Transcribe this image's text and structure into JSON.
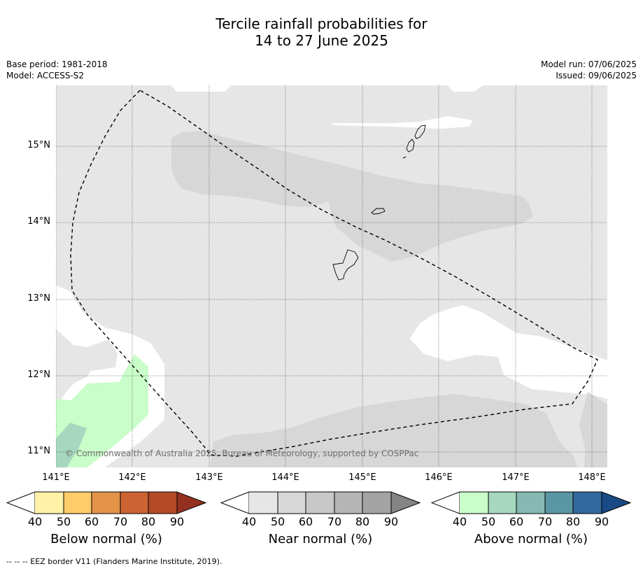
{
  "title_line1": "Tercile rainfall probabilities for",
  "title_line2": "14 to 27 June 2025",
  "base_period": "Base period: 1981-2018",
  "model": "Model: ACCESS-S2",
  "model_run": "Model run: 07/06/2025",
  "issued": "Issued: 09/06/2025",
  "latitude_labels": [
    "15°N",
    "14°N",
    "13°N",
    "12°N",
    "11°N"
  ],
  "longitude_labels": [
    "141°E",
    "142°E",
    "143°E",
    "144°E",
    "145°E",
    "146°E",
    "147°E",
    "148°E"
  ],
  "copyright": "© Commonwealth of Australia 2025, Bureau of Meteorology, supported by COSPPac",
  "colorbars": [
    {
      "label": "Below normal (%)",
      "ticks": [
        "40",
        "50",
        "60",
        "70",
        "80",
        "90"
      ],
      "colors": [
        "#fff2a8",
        "#fecc69",
        "#e39448",
        "#cd6333",
        "#b44a26",
        "#943020"
      ]
    },
    {
      "label": "Near normal (%)",
      "ticks": [
        "40",
        "50",
        "60",
        "70",
        "80",
        "90"
      ],
      "colors": [
        "#e6e6e6",
        "#d7d7d7",
        "#c8c8c8",
        "#b5b5b5",
        "#a3a3a3",
        "#848484"
      ]
    },
    {
      "label": "Above normal (%)",
      "ticks": [
        "40",
        "50",
        "60",
        "70",
        "80",
        "90"
      ],
      "colors": [
        "#c9fdc9",
        "#a6d8bf",
        "#85b9b1",
        "#5a96a3",
        "#33699c",
        "#1a4a85"
      ]
    }
  ],
  "footnote": "--  --  -- EEZ border V11 (Flanders Marine Institute, 2019)."
}
